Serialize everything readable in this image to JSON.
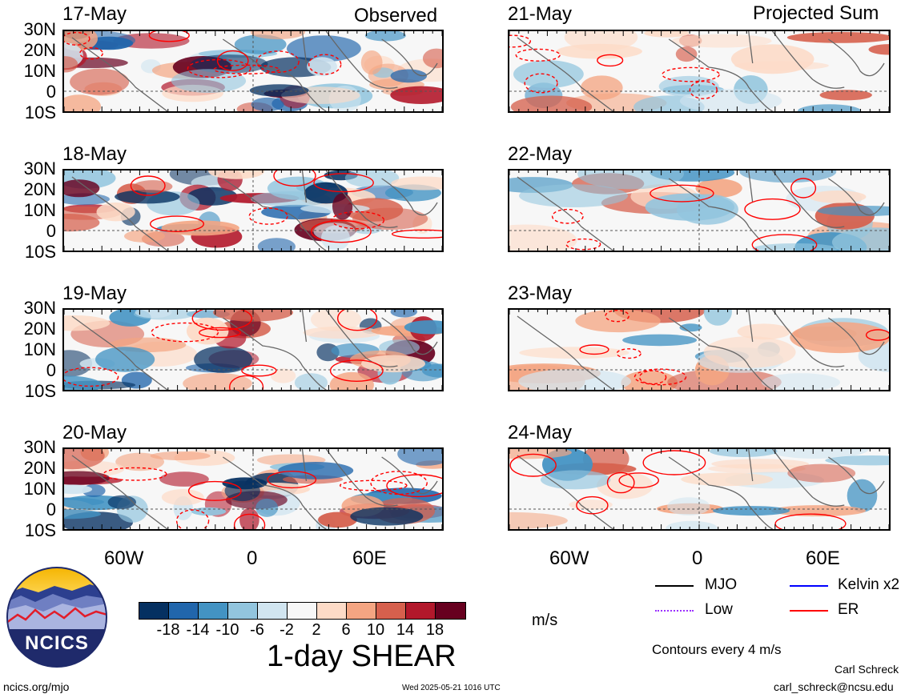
{
  "left_column": {
    "corner_label": "Observed",
    "panels": [
      {
        "date": "17-May"
      },
      {
        "date": "18-May"
      },
      {
        "date": "19-May"
      },
      {
        "date": "20-May"
      }
    ]
  },
  "right_column": {
    "corner_label": "Projected Sum",
    "panels": [
      {
        "date": "21-May"
      },
      {
        "date": "22-May"
      },
      {
        "date": "23-May"
      },
      {
        "date": "24-May"
      }
    ]
  },
  "lat_labels": [
    "30N",
    "20N",
    "10N",
    "0",
    "10S"
  ],
  "lon_labels": [
    "60W",
    "0",
    "60E"
  ],
  "colorbar": {
    "colors": [
      "#053061",
      "#2166ac",
      "#4393c3",
      "#92c5de",
      "#d1e5f0",
      "#f7f7f7",
      "#fddbc7",
      "#f4a582",
      "#d6604d",
      "#b2182b",
      "#67001f"
    ],
    "tick_labels": [
      "-18",
      "-14",
      "-10",
      "-6",
      "-2",
      "2",
      "6",
      "10",
      "14",
      "18"
    ],
    "units": "m/s",
    "title": "1-day SHEAR"
  },
  "legend": {
    "items": [
      {
        "label": "MJO",
        "color": "#000000"
      },
      {
        "label": "Kelvin x2",
        "color": "#0000ff"
      },
      {
        "label": "Low",
        "color": "#9b30ff"
      },
      {
        "label": "ER",
        "color": "#ff0000"
      }
    ],
    "contour_note": "Contours every 4 m/s"
  },
  "logo": {
    "text": "NCICS"
  },
  "footer": {
    "url": "ncics.org/mjo",
    "timestamp": "Wed 2025-05-21 1016 UTC",
    "author": "Carl Schreck",
    "email": "carl_schreck@ncsu.edu"
  }
}
